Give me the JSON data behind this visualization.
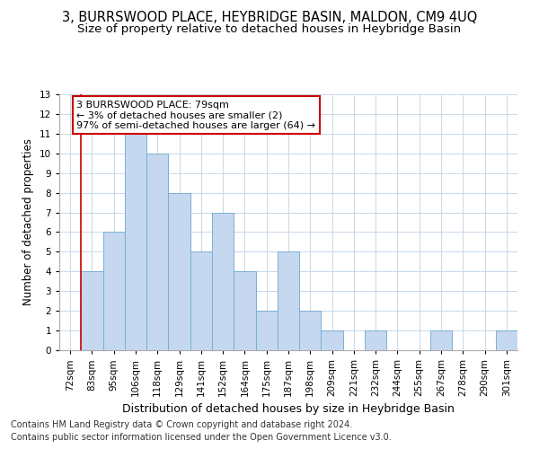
{
  "title": "3, BURRSWOOD PLACE, HEYBRIDGE BASIN, MALDON, CM9 4UQ",
  "subtitle": "Size of property relative to detached houses in Heybridge Basin",
  "xlabel": "Distribution of detached houses by size in Heybridge Basin",
  "ylabel": "Number of detached properties",
  "categories": [
    "72sqm",
    "83sqm",
    "95sqm",
    "106sqm",
    "118sqm",
    "129sqm",
    "141sqm",
    "152sqm",
    "164sqm",
    "175sqm",
    "187sqm",
    "198sqm",
    "209sqm",
    "221sqm",
    "232sqm",
    "244sqm",
    "255sqm",
    "267sqm",
    "278sqm",
    "290sqm",
    "301sqm"
  ],
  "values": [
    0,
    4,
    6,
    11,
    10,
    8,
    5,
    7,
    4,
    2,
    5,
    2,
    1,
    0,
    1,
    0,
    0,
    1,
    0,
    0,
    1
  ],
  "bar_color": "#C5D8F0",
  "bar_edge_color": "#7BAFD4",
  "annotation_text": "3 BURRSWOOD PLACE: 79sqm\n← 3% of detached houses are smaller (2)\n97% of semi-detached houses are larger (64) →",
  "annotation_box_color": "#FFFFFF",
  "annotation_box_edge_color": "#CC0000",
  "redline_x": 0.5,
  "ylim": [
    0,
    13
  ],
  "yticks": [
    0,
    1,
    2,
    3,
    4,
    5,
    6,
    7,
    8,
    9,
    10,
    11,
    12,
    13
  ],
  "footnote1": "Contains HM Land Registry data © Crown copyright and database right 2024.",
  "footnote2": "Contains public sector information licensed under the Open Government Licence v3.0.",
  "bg_color": "#FFFFFF",
  "grid_color": "#C8D8E8",
  "title_fontsize": 10.5,
  "subtitle_fontsize": 9.5,
  "xlabel_fontsize": 9,
  "ylabel_fontsize": 8.5,
  "tick_fontsize": 7.5,
  "annotation_fontsize": 8,
  "footnote_fontsize": 7
}
